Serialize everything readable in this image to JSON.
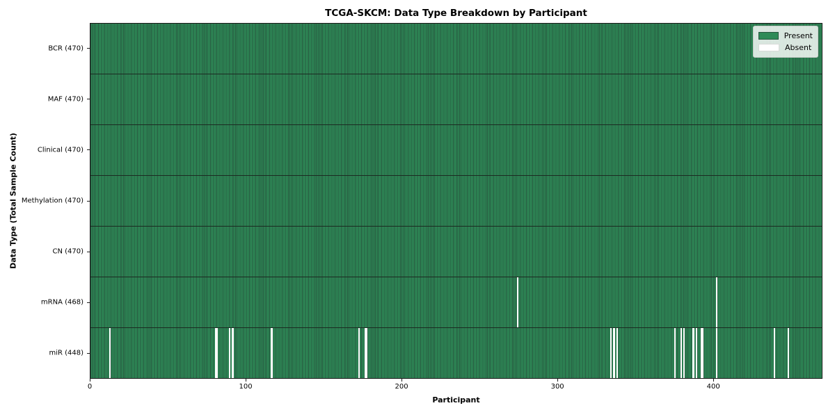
{
  "figure": {
    "title": "TCGA-SKCM: Data Type Breakdown by Participant",
    "xlabel": "Participant",
    "ylabel": "Data Type (Total Sample Count)"
  },
  "chart_data": {
    "type": "heatmap",
    "title": "TCGA-SKCM: Data Type Breakdown by Participant",
    "xlabel": "Participant",
    "ylabel": "Data Type (Total Sample Count)",
    "xlim": [
      0,
      470
    ],
    "x_ticks": [
      0,
      100,
      200,
      300,
      400
    ],
    "n_participants": 470,
    "grid": false,
    "legend_position": "upper right",
    "rows": [
      {
        "label": "BCR (470)",
        "data_type": "BCR",
        "present_count": 470,
        "absent_participants": []
      },
      {
        "label": "MAF (470)",
        "data_type": "MAF",
        "present_count": 470,
        "absent_participants": []
      },
      {
        "label": "Clinical (470)",
        "data_type": "Clinical",
        "present_count": 470,
        "absent_participants": []
      },
      {
        "label": "Methylation (470)",
        "data_type": "Methylation",
        "present_count": 470,
        "absent_participants": []
      },
      {
        "label": "CN (470)",
        "data_type": "CN",
        "present_count": 470,
        "absent_participants": []
      },
      {
        "label": "mRNA (468)",
        "data_type": "mRNA",
        "present_count": 468,
        "absent_participants": [
          274,
          402
        ]
      },
      {
        "label": "miR (448)",
        "data_type": "miR",
        "present_count": 448,
        "absent_participants": [
          12,
          80,
          81,
          89,
          91,
          116,
          172,
          176,
          177,
          334,
          336,
          338,
          375,
          379,
          381,
          387,
          389,
          392,
          393,
          402,
          439,
          448
        ]
      }
    ],
    "legend": [
      {
        "label": "Present",
        "color": "#2e8b57"
      },
      {
        "label": "Absent",
        "color": "#ffffff"
      }
    ],
    "colors": {
      "present": "#2e8b57",
      "absent": "#ffffff",
      "cell_edge": "#27573f",
      "row_divider": "#1b2a21",
      "axis": "#1a1a1a"
    }
  }
}
